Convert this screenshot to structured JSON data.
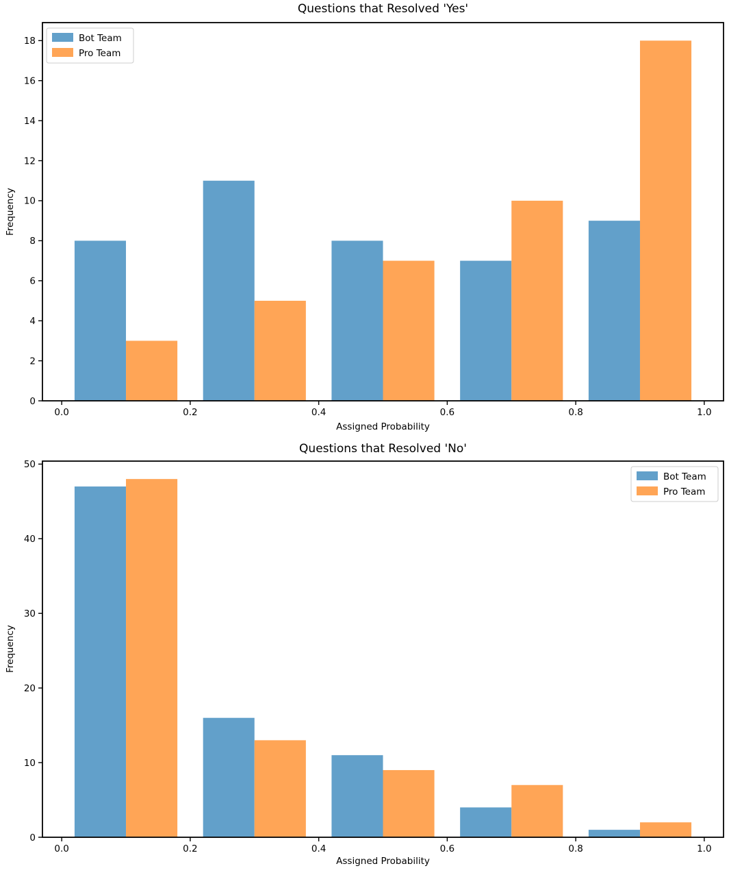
{
  "chart_data": [
    {
      "type": "bar",
      "subtype": "grouped-histogram",
      "title": "Questions that Resolved 'Yes'",
      "xlabel": "Assigned Probability",
      "ylabel": "Frequency",
      "bin_edges": [
        0.0,
        0.2,
        0.4,
        0.6,
        0.8,
        1.0
      ],
      "series": [
        {
          "name": "Bot Team",
          "color": "#62a0ca",
          "values": [
            8,
            11,
            8,
            7,
            9
          ]
        },
        {
          "name": "Pro Team",
          "color": "#ffa556",
          "values": [
            3,
            5,
            7,
            10,
            18
          ]
        }
      ],
      "xlim": [
        -0.03,
        1.03
      ],
      "ylim": [
        0,
        18.9
      ],
      "xticks": [
        0.0,
        0.2,
        0.4,
        0.6,
        0.8,
        1.0
      ],
      "xtick_labels": [
        "0.0",
        "0.2",
        "0.4",
        "0.6",
        "0.8",
        "1.0"
      ],
      "yticks": [
        0,
        2,
        4,
        6,
        8,
        10,
        12,
        14,
        16,
        18
      ],
      "ytick_labels": [
        "0",
        "2",
        "4",
        "6",
        "8",
        "10",
        "12",
        "14",
        "16",
        "18"
      ],
      "legend_position": "top-left",
      "grid": false
    },
    {
      "type": "bar",
      "subtype": "grouped-histogram",
      "title": "Questions that Resolved 'No'",
      "xlabel": "Assigned Probability",
      "ylabel": "Frequency",
      "bin_edges": [
        0.0,
        0.2,
        0.4,
        0.6,
        0.8,
        1.0
      ],
      "series": [
        {
          "name": "Bot Team",
          "color": "#62a0ca",
          "values": [
            47,
            16,
            11,
            4,
            1
          ]
        },
        {
          "name": "Pro Team",
          "color": "#ffa556",
          "values": [
            48,
            13,
            9,
            7,
            2
          ]
        }
      ],
      "xlim": [
        -0.03,
        1.03
      ],
      "ylim": [
        0,
        50.4
      ],
      "xticks": [
        0.0,
        0.2,
        0.4,
        0.6,
        0.8,
        1.0
      ],
      "xtick_labels": [
        "0.0",
        "0.2",
        "0.4",
        "0.6",
        "0.8",
        "1.0"
      ],
      "yticks": [
        0,
        10,
        20,
        30,
        40,
        50
      ],
      "ytick_labels": [
        "0",
        "10",
        "20",
        "30",
        "40",
        "50"
      ],
      "legend_position": "top-right",
      "grid": false
    }
  ],
  "style": {
    "axis_color": "#000000",
    "legend_border_color": "#cccccc",
    "legend_background": "#ffffff",
    "background": "#ffffff"
  }
}
